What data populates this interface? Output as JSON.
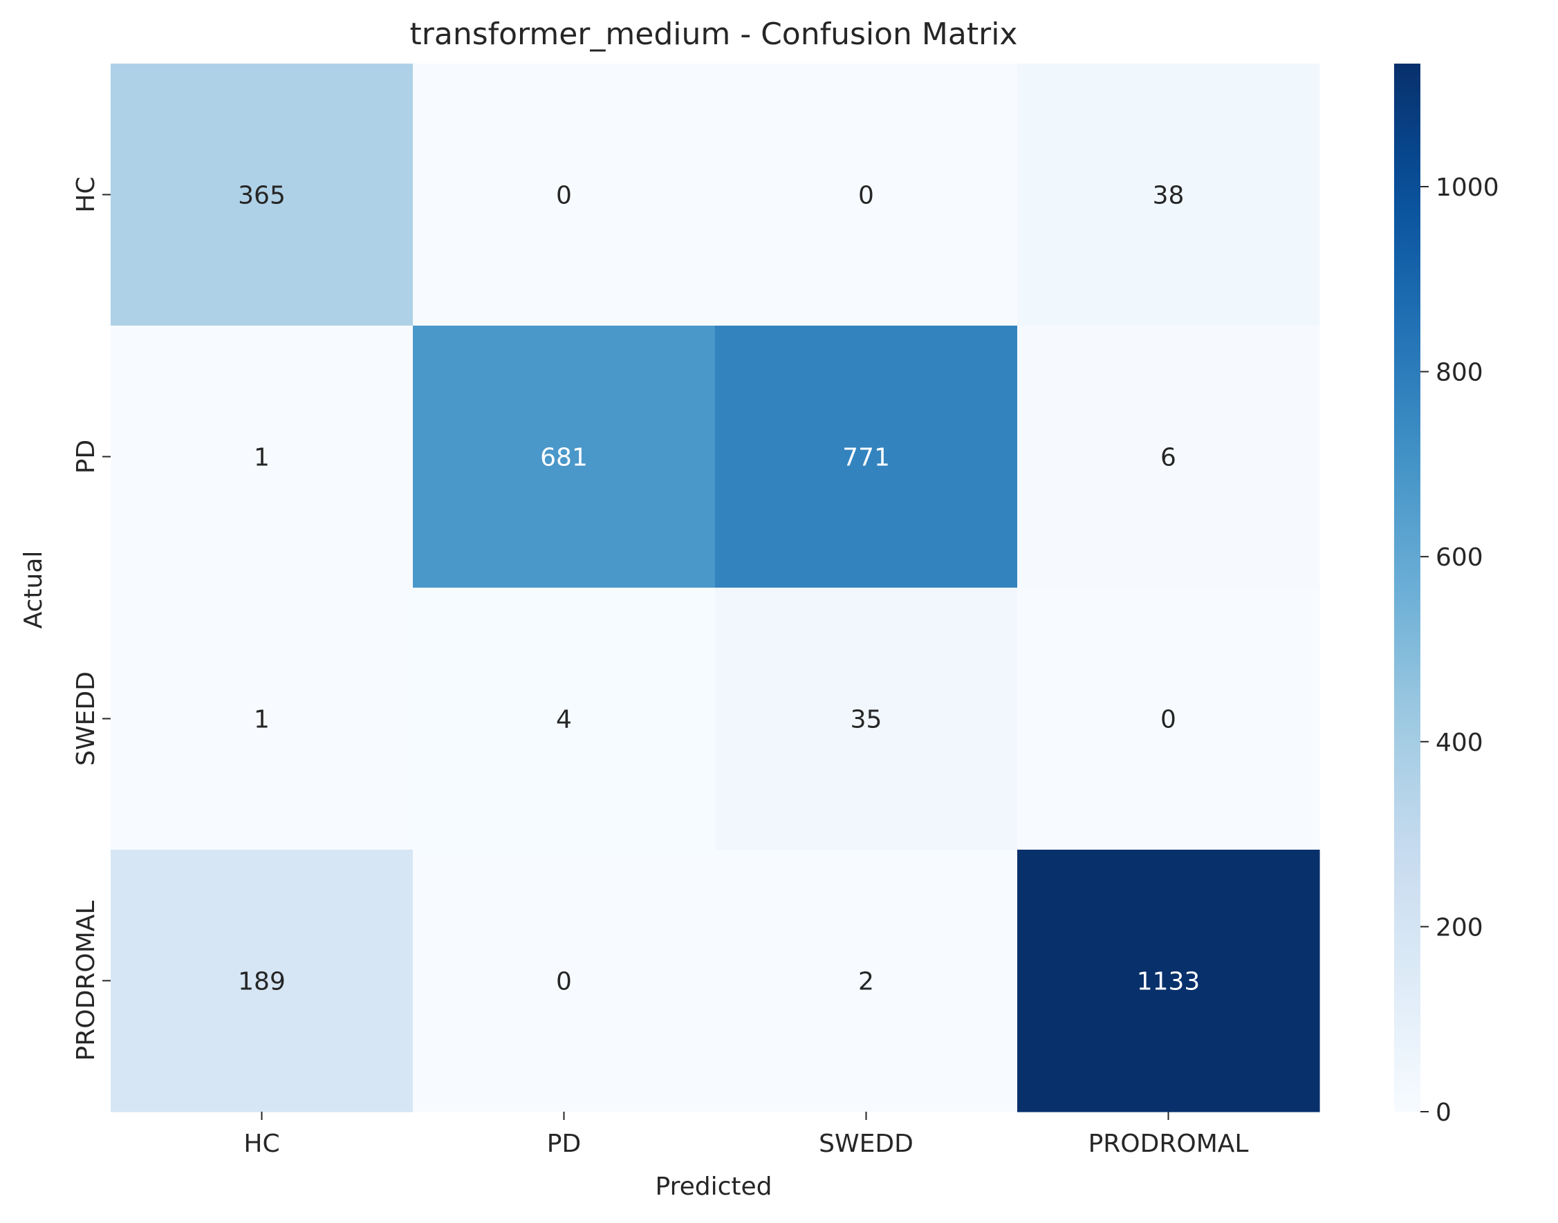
{
  "chart_data": {
    "type": "heatmap",
    "title": "transformer_medium - Confusion Matrix",
    "xlabel": "Predicted",
    "ylabel": "Actual",
    "x_categories": [
      "HC",
      "PD",
      "SWEDD",
      "PRODROMAL"
    ],
    "y_categories": [
      "HC",
      "PD",
      "SWEDD",
      "PRODROMAL"
    ],
    "values": [
      [
        365,
        0,
        0,
        38
      ],
      [
        1,
        681,
        771,
        6
      ],
      [
        1,
        4,
        35,
        0
      ],
      [
        189,
        0,
        2,
        1133
      ]
    ],
    "colormap": "Blues",
    "vmin": 0,
    "vmax": 1133,
    "colorbar_ticks": [
      0,
      200,
      400,
      600,
      800,
      1000
    ],
    "colorbar_tick_labels": [
      "0",
      "200",
      "400",
      "600",
      "800",
      "1000"
    ],
    "text_color_dark": "#262626",
    "text_color_light": "#ffffff"
  }
}
